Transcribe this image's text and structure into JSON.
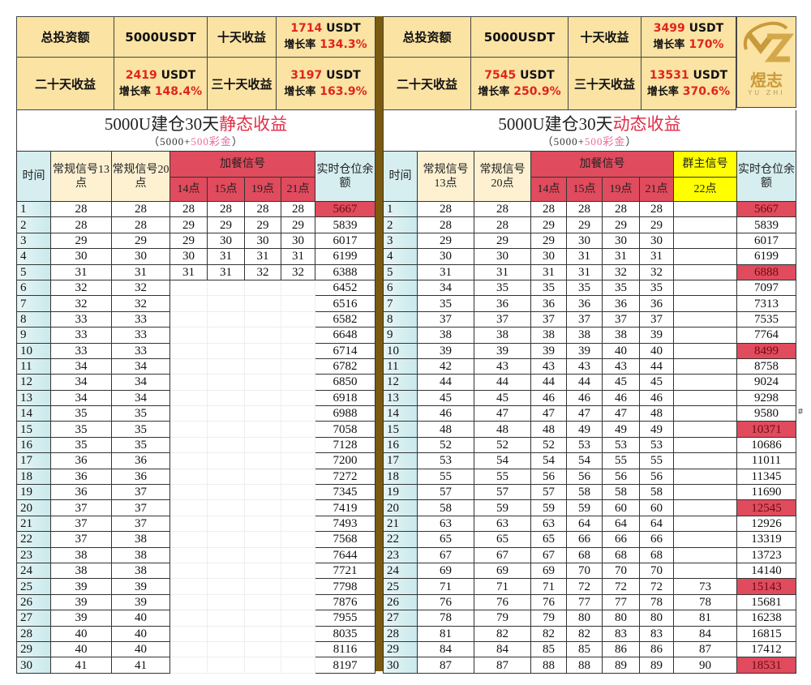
{
  "left": {
    "summary": {
      "total_label": "总投资额",
      "total_value": "5000USDT",
      "d10_label": "十天收益",
      "d10_amount": "1714",
      "d10_unit": "USDT",
      "d10_rate_label": "增长率",
      "d10_rate": "134.3%",
      "d20_label": "二十天收益",
      "d20_amount": "2419",
      "d20_unit": "USDT",
      "d20_rate_label": "增长率",
      "d20_rate": "148.4%",
      "d30_label": "三十天收益",
      "d30_amount": "3197",
      "d30_unit": "USDT",
      "d30_rate_label": "增长率",
      "d30_rate": "163.9%"
    },
    "title_main": "5000U建仓30天",
    "title_highlight": "静态收益",
    "subtitle_open": "（5000+",
    "subtitle_bonus": "500彩金",
    "subtitle_close": "）",
    "headers": {
      "time": "时间",
      "reg13": "常规信号13点",
      "reg20": "常规信号20点",
      "extra": "加餐信号",
      "h14": "14点",
      "h15": "15点",
      "h19": "19点",
      "h21": "21点",
      "balance": "实时仓位余额"
    },
    "highlight_days": [
      1
    ],
    "rows": [
      [
        1,
        28,
        28,
        28,
        28,
        28,
        28,
        5667
      ],
      [
        2,
        28,
        28,
        29,
        29,
        29,
        29,
        5839
      ],
      [
        3,
        29,
        29,
        29,
        30,
        30,
        30,
        6017
      ],
      [
        4,
        30,
        30,
        30,
        31,
        31,
        31,
        6199
      ],
      [
        5,
        31,
        31,
        31,
        31,
        32,
        32,
        6388
      ],
      [
        6,
        32,
        32,
        null,
        null,
        null,
        null,
        6452
      ],
      [
        7,
        32,
        32,
        null,
        null,
        null,
        null,
        6516
      ],
      [
        8,
        33,
        33,
        null,
        null,
        null,
        null,
        6582
      ],
      [
        9,
        33,
        33,
        null,
        null,
        null,
        null,
        6648
      ],
      [
        10,
        33,
        33,
        null,
        null,
        null,
        null,
        6714
      ],
      [
        11,
        34,
        34,
        null,
        null,
        null,
        null,
        6782
      ],
      [
        12,
        34,
        34,
        null,
        null,
        null,
        null,
        6850
      ],
      [
        13,
        34,
        34,
        null,
        null,
        null,
        null,
        6918
      ],
      [
        14,
        35,
        35,
        null,
        null,
        null,
        null,
        6988
      ],
      [
        15,
        35,
        35,
        null,
        null,
        null,
        null,
        7058
      ],
      [
        16,
        35,
        35,
        null,
        null,
        null,
        null,
        7128
      ],
      [
        17,
        36,
        36,
        null,
        null,
        null,
        null,
        7200
      ],
      [
        18,
        36,
        36,
        null,
        null,
        null,
        null,
        7272
      ],
      [
        19,
        36,
        37,
        null,
        null,
        null,
        null,
        7345
      ],
      [
        20,
        37,
        37,
        null,
        null,
        null,
        null,
        7419
      ],
      [
        21,
        37,
        37,
        null,
        null,
        null,
        null,
        7493
      ],
      [
        22,
        37,
        38,
        null,
        null,
        null,
        null,
        7568
      ],
      [
        23,
        38,
        38,
        null,
        null,
        null,
        null,
        7644
      ],
      [
        24,
        38,
        38,
        null,
        null,
        null,
        null,
        7721
      ],
      [
        25,
        39,
        39,
        null,
        null,
        null,
        null,
        7798
      ],
      [
        26,
        39,
        39,
        null,
        null,
        null,
        null,
        7876
      ],
      [
        27,
        39,
        40,
        null,
        null,
        null,
        null,
        7955
      ],
      [
        28,
        40,
        40,
        null,
        null,
        null,
        null,
        8035
      ],
      [
        29,
        40,
        40,
        null,
        null,
        null,
        null,
        8116
      ],
      [
        30,
        41,
        41,
        null,
        null,
        null,
        null,
        8197
      ]
    ]
  },
  "right": {
    "summary": {
      "total_label": "总投资额",
      "total_value": "5000USDT",
      "d10_label": "十天收益",
      "d10_amount": "3499",
      "d10_unit": "USDT",
      "d10_rate_label": "增长率",
      "d10_rate": "170%",
      "d20_label": "二十天收益",
      "d20_amount": "7545",
      "d20_unit": "USDT",
      "d20_rate_label": "增长率",
      "d20_rate": "250.9%",
      "d30_label": "三十天收益",
      "d30_amount": "13531",
      "d30_unit": "USDT",
      "d30_rate_label": "增长率",
      "d30_rate": "370.6%"
    },
    "title_main": "5000U建仓30天",
    "title_highlight": "动态收益",
    "subtitle_open": "（5000+",
    "subtitle_bonus": "500彩金",
    "subtitle_close": "）",
    "headers": {
      "time": "时间",
      "reg13": "常规信号13点",
      "reg20": "常规信号20点",
      "extra": "加餐信号",
      "h14": "14点",
      "h15": "15点",
      "h19": "19点",
      "h21": "21点",
      "owner": "群主信号",
      "h22": "22点",
      "balance": "实时仓位余额"
    },
    "highlight_days": [
      1,
      5,
      10,
      15,
      20,
      25,
      30
    ],
    "rows": [
      [
        1,
        28,
        28,
        28,
        28,
        28,
        28,
        null,
        5667
      ],
      [
        2,
        28,
        28,
        29,
        29,
        29,
        29,
        null,
        5839
      ],
      [
        3,
        29,
        29,
        29,
        30,
        30,
        30,
        null,
        6017
      ],
      [
        4,
        30,
        30,
        30,
        31,
        31,
        31,
        null,
        6199
      ],
      [
        5,
        31,
        31,
        31,
        31,
        32,
        32,
        null,
        6888
      ],
      [
        6,
        34,
        35,
        35,
        35,
        35,
        35,
        null,
        7097
      ],
      [
        7,
        35,
        36,
        36,
        36,
        36,
        36,
        null,
        7313
      ],
      [
        8,
        37,
        37,
        37,
        37,
        37,
        37,
        null,
        7535
      ],
      [
        9,
        38,
        38,
        38,
        38,
        38,
        39,
        null,
        7764
      ],
      [
        10,
        39,
        39,
        39,
        39,
        40,
        40,
        null,
        8499
      ],
      [
        11,
        42,
        43,
        43,
        43,
        43,
        44,
        null,
        8758
      ],
      [
        12,
        44,
        44,
        44,
        44,
        45,
        45,
        null,
        9024
      ],
      [
        13,
        45,
        45,
        46,
        46,
        46,
        46,
        null,
        9298
      ],
      [
        14,
        46,
        47,
        47,
        47,
        47,
        48,
        null,
        9580
      ],
      [
        15,
        48,
        48,
        48,
        49,
        49,
        49,
        null,
        10371
      ],
      [
        16,
        52,
        52,
        52,
        53,
        53,
        53,
        null,
        10686
      ],
      [
        17,
        53,
        54,
        54,
        54,
        55,
        55,
        null,
        11011
      ],
      [
        18,
        55,
        55,
        56,
        56,
        56,
        56,
        null,
        11345
      ],
      [
        19,
        57,
        57,
        57,
        58,
        58,
        58,
        null,
        11690
      ],
      [
        20,
        58,
        59,
        59,
        59,
        60,
        60,
        null,
        12545
      ],
      [
        21,
        63,
        63,
        63,
        64,
        64,
        64,
        null,
        12926
      ],
      [
        22,
        65,
        65,
        65,
        66,
        66,
        66,
        null,
        13319
      ],
      [
        23,
        67,
        67,
        67,
        68,
        68,
        68,
        null,
        13723
      ],
      [
        24,
        69,
        69,
        69,
        70,
        70,
        70,
        null,
        14140
      ],
      [
        25,
        71,
        71,
        71,
        72,
        72,
        72,
        73,
        15143
      ],
      [
        26,
        76,
        76,
        76,
        77,
        77,
        78,
        78,
        15681
      ],
      [
        27,
        78,
        79,
        79,
        80,
        80,
        80,
        81,
        16238
      ],
      [
        28,
        81,
        82,
        82,
        82,
        83,
        83,
        84,
        16815
      ],
      [
        29,
        84,
        84,
        85,
        85,
        86,
        86,
        87,
        17412
      ],
      [
        30,
        87,
        87,
        88,
        88,
        89,
        89,
        90,
        18531
      ]
    ]
  },
  "logo": {
    "mark": "YZ",
    "brand": "煜志",
    "en": "YU ZHI"
  },
  "overflow_marker": "#",
  "colors": {
    "summary_bg": "#fbe3a4",
    "highlight_red": "#e04b5d",
    "owner_yellow": "#ffff00",
    "divider": "#7a5a10",
    "time_col": "#d6eef0"
  }
}
